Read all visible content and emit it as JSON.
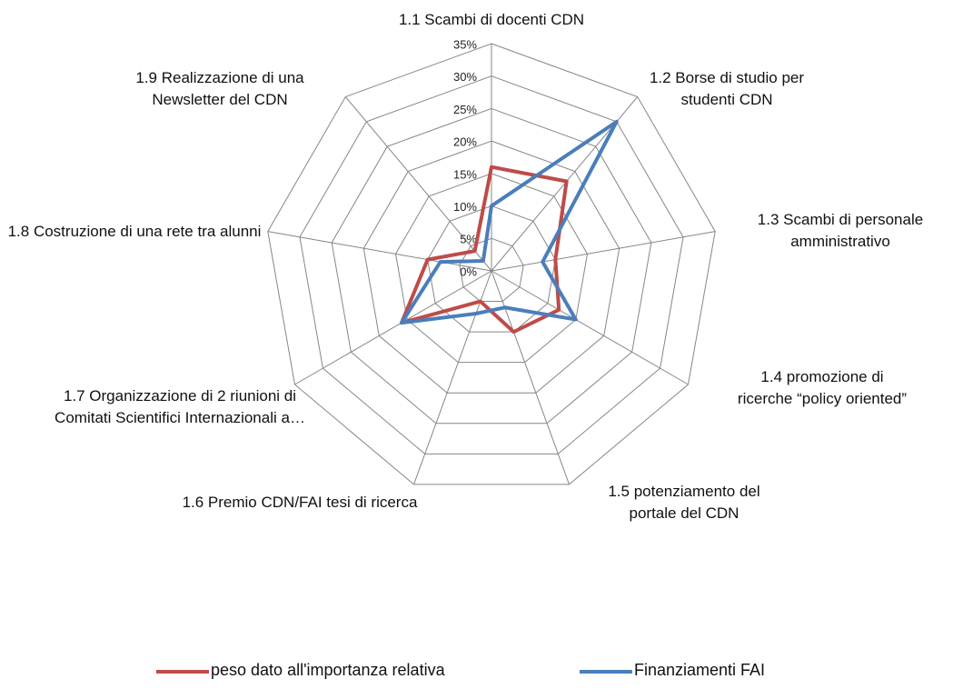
{
  "chart_data": {
    "type": "radar",
    "categories": [
      "1.1 Scambi di docenti CDN",
      "1.2 Borse di studio per studenti CDN",
      "1.3 Scambi di personale amministrativo",
      "1.4 promozione di ricerche “policy oriented”",
      "1.5 potenziamento del portale del CDN",
      "1.6 Premio CDN/FAI tesi di ricerca",
      "1.7 Organizzazione di 2 riunioni di Comitati Scientifici Internazionali a…",
      "1.8 Costruzione di una rete tra alunni",
      "1.9 Realizzazione di una Newsletter del CDN"
    ],
    "series": [
      {
        "name": "peso dato all'importanza relativa",
        "color": "#be4b48",
        "values": [
          16,
          18,
          10,
          12,
          10,
          5,
          16,
          10,
          4
        ]
      },
      {
        "name": "Finanziamenti FAI",
        "color": "#4a7ebb",
        "values": [
          10,
          30,
          8,
          15,
          6,
          7,
          16,
          8,
          2
        ]
      }
    ],
    "ylim": [
      0,
      35
    ],
    "yticks": [
      {
        "value": 0,
        "label": "0%"
      },
      {
        "value": 5,
        "label": "5%"
      },
      {
        "value": 10,
        "label": "10%"
      },
      {
        "value": 15,
        "label": "15%"
      },
      {
        "value": 20,
        "label": "20%"
      },
      {
        "value": 25,
        "label": "25%"
      },
      {
        "value": 30,
        "label": "30%"
      },
      {
        "value": 35,
        "label": "35%"
      }
    ],
    "grid": true,
    "legend": "bottom"
  }
}
